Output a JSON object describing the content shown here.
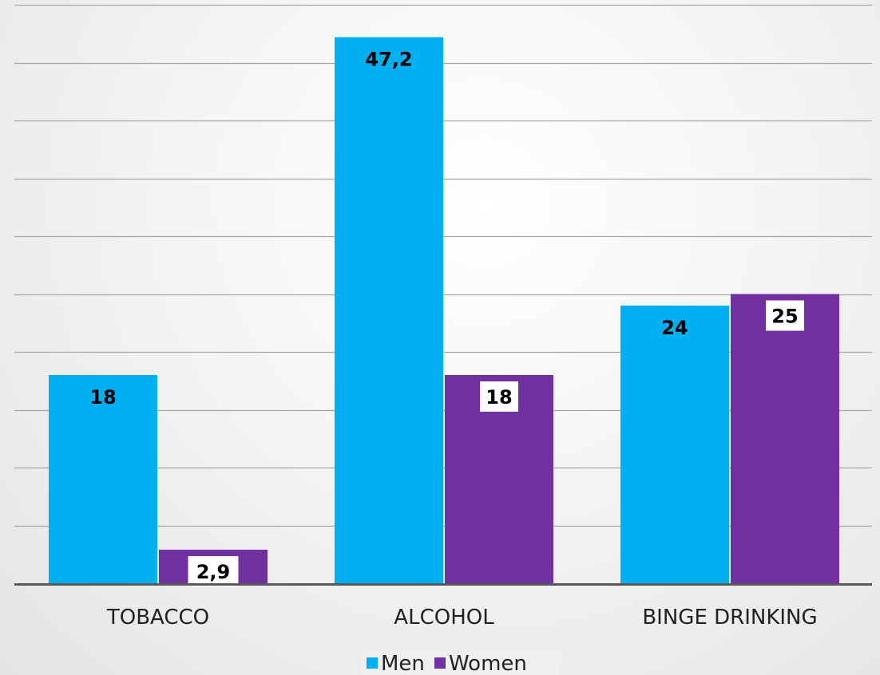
{
  "chart_data": {
    "type": "bar",
    "categories": [
      "TOBACCO",
      "ALCOHOL",
      "BINGE DRINKING"
    ],
    "series": [
      {
        "name": "Men",
        "values": [
          18,
          47.2,
          24
        ],
        "labels": [
          "18",
          "47,2",
          "24"
        ],
        "color": "#00B0F0"
      },
      {
        "name": "Women",
        "values": [
          2.9,
          18,
          25
        ],
        "labels": [
          "2,9",
          "18",
          "25"
        ],
        "color": "#7030A0"
      }
    ],
    "title": "",
    "xlabel": "",
    "ylabel": "",
    "ylim": [
      0,
      50
    ],
    "grid": true,
    "legend_position": "bottom",
    "colors": {
      "axis": "#595959",
      "grid": "#a6a6a6",
      "label_box": "#ffffff"
    }
  }
}
